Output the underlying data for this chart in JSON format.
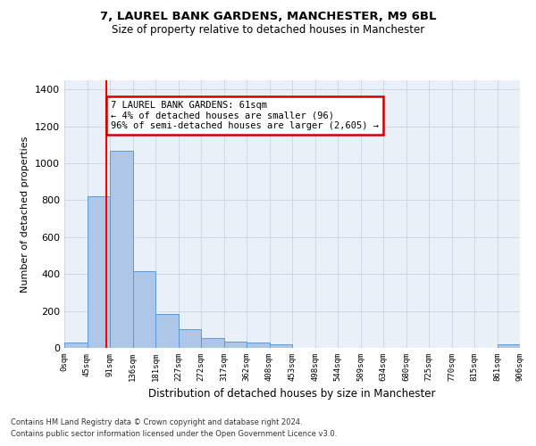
{
  "title": "7, LAUREL BANK GARDENS, MANCHESTER, M9 6BL",
  "subtitle": "Size of property relative to detached houses in Manchester",
  "xlabel": "Distribution of detached houses by size in Manchester",
  "ylabel": "Number of detached properties",
  "bar_values": [
    27,
    820,
    1070,
    415,
    183,
    103,
    54,
    36,
    27,
    18,
    0,
    0,
    0,
    0,
    0,
    0,
    0,
    0,
    0,
    18
  ],
  "bar_color": "#aec6e8",
  "bar_edge_color": "#5b9bd5",
  "x_tick_labels": [
    "0sqm",
    "45sqm",
    "91sqm",
    "136sqm",
    "181sqm",
    "227sqm",
    "272sqm",
    "317sqm",
    "362sqm",
    "408sqm",
    "453sqm",
    "498sqm",
    "544sqm",
    "589sqm",
    "634sqm",
    "680sqm",
    "725sqm",
    "770sqm",
    "815sqm",
    "861sqm",
    "906sqm"
  ],
  "ylim": [
    0,
    1450
  ],
  "yticks": [
    0,
    200,
    400,
    600,
    800,
    1000,
    1200,
    1400
  ],
  "property_line_x": 1.35,
  "annotation_text": "7 LAUREL BANK GARDENS: 61sqm\n← 4% of detached houses are smaller (96)\n96% of semi-detached houses are larger (2,605) →",
  "annotation_box_color": "#ffffff",
  "annotation_box_edge": "#cc0000",
  "grid_color": "#d0d8e8",
  "bg_color": "#eaf0f8",
  "footer_line1": "Contains HM Land Registry data © Crown copyright and database right 2024.",
  "footer_line2": "Contains public sector information licensed under the Open Government Licence v3.0."
}
